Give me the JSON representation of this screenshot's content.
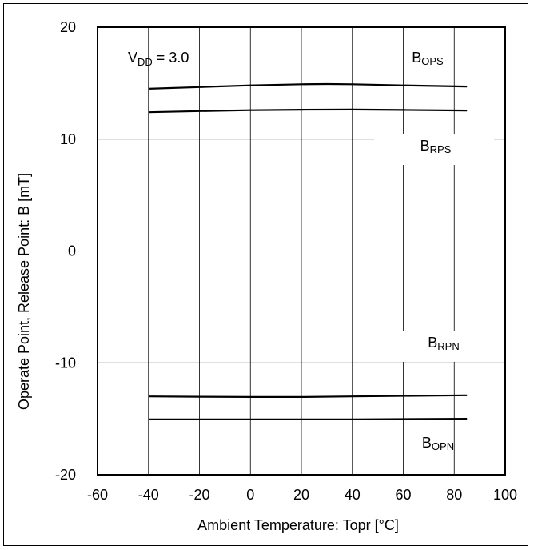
{
  "chart_data": {
    "type": "line",
    "title": "",
    "xlabel": "Ambient Temperature: Topr [°C]",
    "ylabel": "Operate Point, Release Point: B [mT]",
    "xlim": [
      -60,
      100
    ],
    "ylim": [
      -20,
      20
    ],
    "x_ticks": [
      -60,
      -40,
      -20,
      0,
      20,
      40,
      60,
      80,
      100
    ],
    "y_ticks": [
      -20,
      -10,
      0,
      10,
      20
    ],
    "grid": true,
    "condition": {
      "main": "V",
      "sub": "DD",
      "rest": " = 3.0"
    },
    "series": [
      {
        "name": "BOPS",
        "label_main": "B",
        "label_sub": "OPS",
        "x": [
          -40,
          -20,
          0,
          20,
          30,
          40,
          60,
          85
        ],
        "y": [
          14.5,
          14.65,
          14.8,
          14.9,
          14.92,
          14.9,
          14.8,
          14.7
        ]
      },
      {
        "name": "BRPS",
        "label_main": "B",
        "label_sub": "RPS",
        "x": [
          -40,
          -20,
          0,
          20,
          40,
          60,
          85
        ],
        "y": [
          12.4,
          12.5,
          12.58,
          12.62,
          12.64,
          12.6,
          12.55
        ]
      },
      {
        "name": "BRPN",
        "label_main": "B",
        "label_sub": "RPN",
        "x": [
          -40,
          -20,
          0,
          20,
          40,
          60,
          85
        ],
        "y": [
          -13.0,
          -13.03,
          -13.05,
          -13.05,
          -13.0,
          -12.95,
          -12.9
        ]
      },
      {
        "name": "BOPN",
        "label_main": "B",
        "label_sub": "OPN",
        "x": [
          -40,
          0,
          40,
          85
        ],
        "y": [
          -15.05,
          -15.05,
          -15.05,
          -15.0
        ]
      }
    ]
  }
}
